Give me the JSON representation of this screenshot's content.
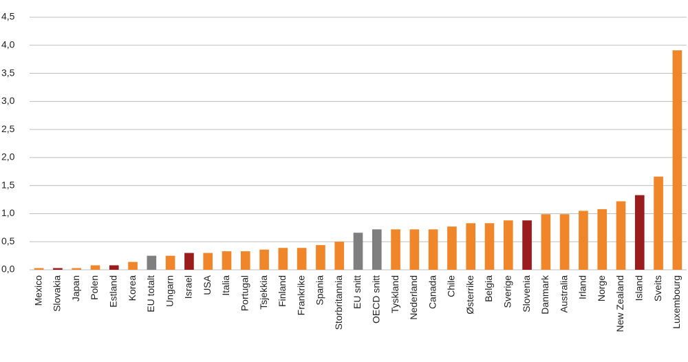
{
  "chart_data": {
    "type": "bar",
    "categories": [
      "Mexico",
      "Slovakia",
      "Japan",
      "Polen",
      "Estland",
      "Korea",
      "EU totalt",
      "Ungarn",
      "Israel",
      "USA",
      "Italia",
      "Portugal",
      "Tsjekkia",
      "Finland",
      "Frankrike",
      "Spania",
      "Storbritannia",
      "EU snitt",
      "OECD snitt",
      "Tyskland",
      "Nederland",
      "Canada",
      "Chile",
      "Østerrike",
      "Belgia",
      "Sverige",
      "Slovenia",
      "Danmark",
      "Australia",
      "Irland",
      "Norge",
      "New Zealand",
      "Island",
      "Sveits",
      "Luxembourg"
    ],
    "values": [
      0.03,
      0.03,
      0.03,
      0.08,
      0.08,
      0.14,
      0.25,
      0.25,
      0.3,
      0.3,
      0.33,
      0.33,
      0.36,
      0.39,
      0.39,
      0.44,
      0.5,
      0.66,
      0.72,
      0.72,
      0.72,
      0.72,
      0.77,
      0.83,
      0.83,
      0.88,
      0.88,
      0.99,
      0.99,
      1.05,
      1.08,
      1.22,
      1.33,
      1.66,
      3.91
    ],
    "colors": [
      "#f0862a",
      "#9b1c1c",
      "#f0862a",
      "#f0862a",
      "#9b1c1c",
      "#f0862a",
      "#7f7f7f",
      "#f0862a",
      "#9b1c1c",
      "#f0862a",
      "#f0862a",
      "#f0862a",
      "#f0862a",
      "#f0862a",
      "#f0862a",
      "#f0862a",
      "#f0862a",
      "#7f7f7f",
      "#7f7f7f",
      "#f0862a",
      "#f0862a",
      "#f0862a",
      "#f0862a",
      "#f0862a",
      "#f0862a",
      "#f0862a",
      "#9b1c1c",
      "#f0862a",
      "#f0862a",
      "#f0862a",
      "#f0862a",
      "#f0862a",
      "#9b1c1c",
      "#f0862a",
      "#f0862a"
    ],
    "ylim": [
      0,
      4.5
    ],
    "yticks": [
      {
        "value": 0,
        "label": "0,0"
      },
      {
        "value": 0.5,
        "label": "0,5"
      },
      {
        "value": 1,
        "label": "1,0"
      },
      {
        "value": 1.5,
        "label": "1,5"
      },
      {
        "value": 2,
        "label": "2,0"
      },
      {
        "value": 2.5,
        "label": "2,5"
      },
      {
        "value": 3,
        "label": "3,0"
      },
      {
        "value": 3.5,
        "label": "3,5"
      },
      {
        "value": 4,
        "label": "4,0"
      },
      {
        "value": 4.5,
        "label": "4,5"
      }
    ],
    "grid": true
  }
}
